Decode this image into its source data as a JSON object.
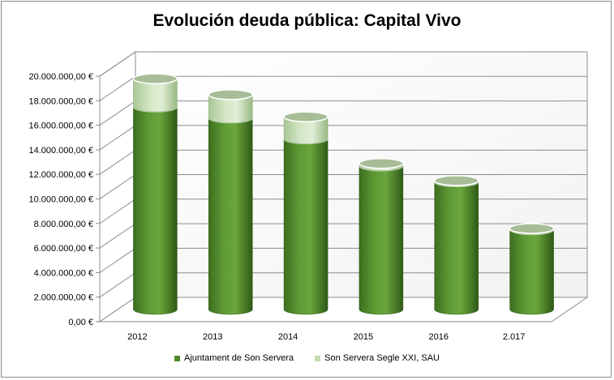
{
  "chart_data": {
    "type": "bar",
    "title": "Evolución deuda pública: Capital Vivo",
    "categories": [
      "2012",
      "2013",
      "2014",
      "2015",
      "2016",
      "2.017"
    ],
    "series": [
      {
        "name": "Ajuntament de Son Servera",
        "color": "#4f8a2b",
        "values": [
          16500000,
          15600000,
          13900000,
          11700000,
          10400000,
          6500000
        ]
      },
      {
        "name": "Son Servera Segle XXI, SAU",
        "color": "#c4dcb0",
        "values": [
          2300000,
          1900000,
          1800000,
          200000,
          100000,
          100000
        ]
      }
    ],
    "stacked": true,
    "ylim": [
      0,
      20000000
    ],
    "yticks": [
      "0,00 €",
      "2.000.000,00 €",
      "4.000.000,00 €",
      "6.000.000,00 €",
      "8.000.000,00 €",
      "10.000.000,00 €",
      "12.000.000,00 €",
      "14.000.000,00 €",
      "16.000.000,00 €",
      "18.000.000,00 €",
      "20.000.000,00 €"
    ],
    "grid": true,
    "legend": "bottom",
    "style": "3d-cylinder"
  }
}
